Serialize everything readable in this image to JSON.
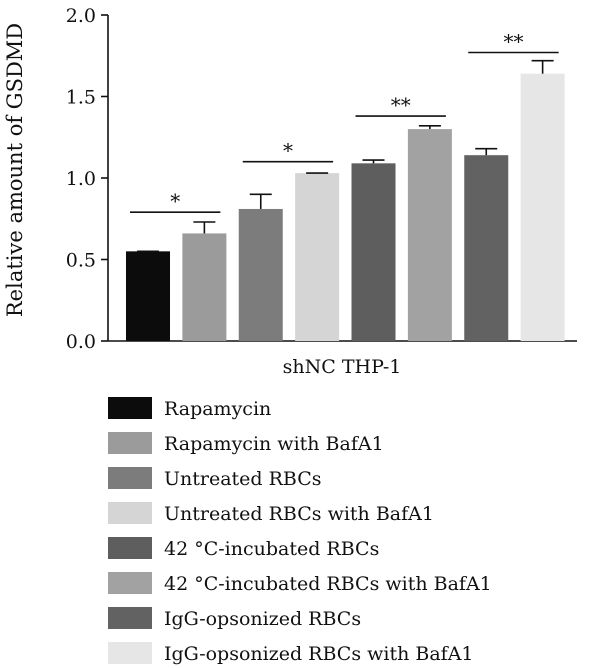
{
  "chart_data": {
    "type": "bar",
    "title": "",
    "xlabel": "shNC THP-1",
    "ylabel": "Relative amount of GSDMD",
    "ylim": [
      0,
      2.0
    ],
    "yticks": [
      "0.0",
      "0.5",
      "1.0",
      "1.5",
      "2.0"
    ],
    "grid": false,
    "legend_position": "bottom",
    "categories": [
      "Rapamycin",
      "Rapamycin with BafA1",
      "Untreated RBCs",
      "Untreated RBCs with BafA1",
      "42 °C-incubated RBCs",
      "42 °C-incubated RBCs with BafA1",
      "IgG-opsonized RBCs",
      "IgG-opsonized RBCs with BafA1"
    ],
    "values": [
      0.55,
      0.66,
      0.81,
      1.03,
      1.09,
      1.3,
      1.14,
      1.64
    ],
    "errors": [
      0.0,
      0.07,
      0.09,
      0.0,
      0.02,
      0.02,
      0.04,
      0.08
    ],
    "colors": [
      "#0c0c0c",
      "#9b9b9b",
      "#7c7c7c",
      "#d5d5d5",
      "#5e5e5e",
      "#a2a2a2",
      "#626262",
      "#e6e6e6"
    ],
    "significance": [
      {
        "pair": [
          0,
          1
        ],
        "label": "*",
        "y": 0.79
      },
      {
        "pair": [
          2,
          3
        ],
        "label": "*",
        "y": 1.1
      },
      {
        "pair": [
          4,
          5
        ],
        "label": "**",
        "y": 1.38
      },
      {
        "pair": [
          6,
          7
        ],
        "label": "**",
        "y": 1.77
      }
    ]
  }
}
